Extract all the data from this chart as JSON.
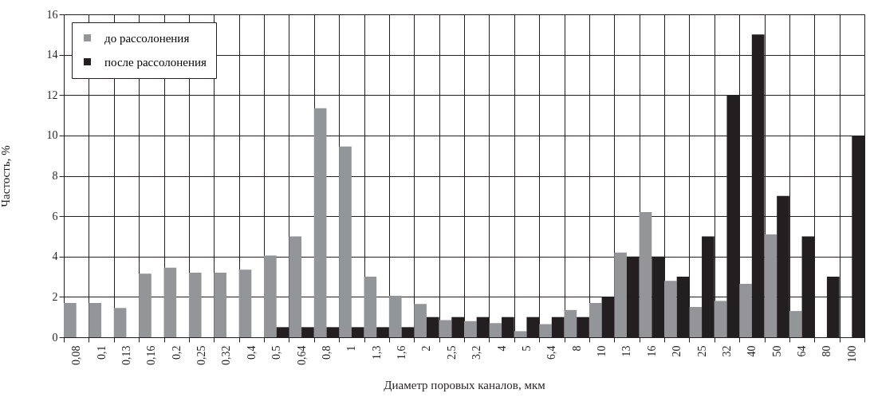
{
  "chart_data": {
    "type": "bar",
    "xlabel": "Диаметр поровых каналов, мкм",
    "ylabel": "Частость, %",
    "categories": [
      "0,08",
      "0,1",
      "0,13",
      "0,16",
      "0,2",
      "0,25",
      "0,32",
      "0,4",
      "0,5",
      "0,64",
      "0,8",
      "1",
      "1,3",
      "1,6",
      "2",
      "2,5",
      "3,2",
      "4",
      "5",
      "6,4",
      "8",
      "10",
      "13",
      "16",
      "20",
      "25",
      "32",
      "40",
      "50",
      "64",
      "80",
      "100"
    ],
    "series": [
      {
        "name": "до рассолонения",
        "color": "#939598",
        "values": [
          1.7,
          1.7,
          1.45,
          3.15,
          3.45,
          3.2,
          3.2,
          3.35,
          4.05,
          5.0,
          11.35,
          9.45,
          3.0,
          2.05,
          1.65,
          0.85,
          0.8,
          0.7,
          0.3,
          0.65,
          1.35,
          1.7,
          4.2,
          6.2,
          2.8,
          1.5,
          1.8,
          2.65,
          5.1,
          1.3,
          null,
          null
        ]
      },
      {
        "name": "после рассолонения",
        "color": "#231f20",
        "values": [
          null,
          null,
          null,
          null,
          null,
          null,
          null,
          null,
          0.5,
          0.5,
          0.5,
          0.5,
          0.5,
          0.5,
          1,
          1,
          1,
          1,
          1,
          1,
          1,
          2,
          4,
          4,
          3,
          5,
          12,
          15,
          7,
          5,
          3,
          10
        ]
      }
    ],
    "ylim": [
      0,
      16
    ],
    "yticks": [
      0,
      2,
      4,
      6,
      8,
      10,
      12,
      14,
      16
    ],
    "grid": true,
    "legend": "top left"
  }
}
